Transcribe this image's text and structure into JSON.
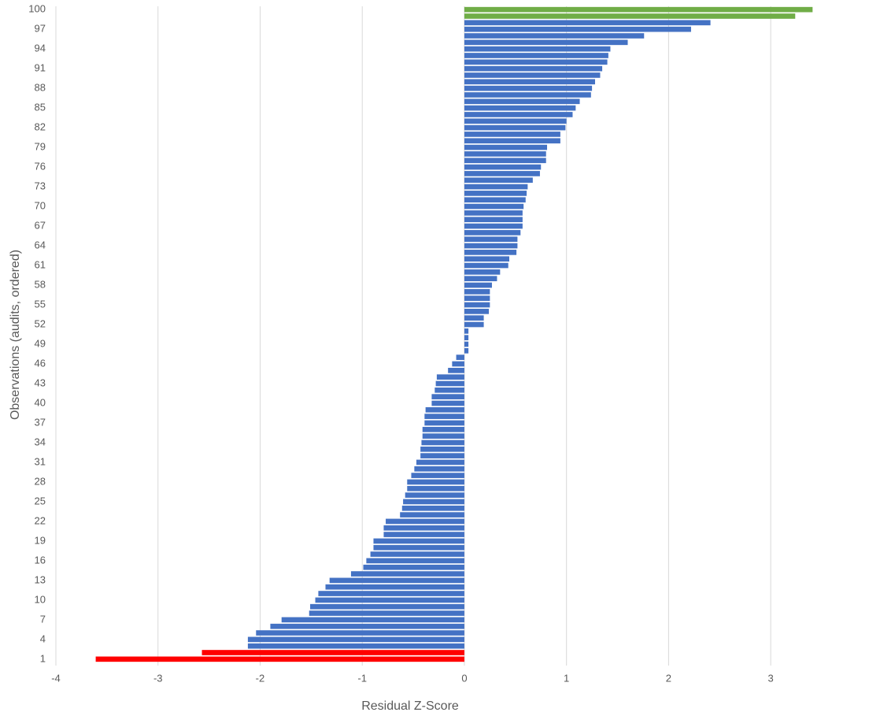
{
  "chart_data": {
    "type": "bar",
    "orientation": "horizontal",
    "x_label": "Residual Z-Score",
    "y_label": "Observations (audits, ordered)",
    "categories": [
      "1",
      null,
      null,
      "4",
      null,
      null,
      "7",
      null,
      null,
      "10",
      null,
      null,
      "13",
      null,
      null,
      "16",
      null,
      null,
      "19",
      null,
      null,
      "22",
      null,
      null,
      "25",
      null,
      null,
      "28",
      null,
      null,
      "31",
      null,
      null,
      "34",
      null,
      null,
      "37",
      null,
      null,
      "40",
      null,
      null,
      "43",
      null,
      null,
      "46",
      null,
      null,
      "49",
      null,
      null,
      "52",
      null,
      null,
      "55",
      null,
      null,
      "58",
      null,
      null,
      "61",
      null,
      null,
      "64",
      null,
      null,
      "67",
      null,
      null,
      "70",
      null,
      null,
      "73",
      null,
      null,
      "76",
      null,
      null,
      "79",
      null,
      null,
      "82",
      null,
      null,
      "85",
      null,
      null,
      "88",
      null,
      null,
      "91",
      null,
      null,
      "94",
      null,
      null,
      "97",
      null,
      null,
      "100"
    ],
    "values": [
      -3.61,
      -2.57,
      -2.12,
      -2.12,
      -2.04,
      -1.9,
      -1.79,
      -1.52,
      -1.51,
      -1.46,
      -1.43,
      -1.36,
      -1.32,
      -1.11,
      -0.99,
      -0.96,
      -0.92,
      -0.89,
      -0.89,
      -0.79,
      -0.79,
      -0.77,
      -0.63,
      -0.61,
      -0.6,
      -0.58,
      -0.56,
      -0.56,
      -0.52,
      -0.49,
      -0.47,
      -0.43,
      -0.43,
      -0.42,
      -0.41,
      -0.41,
      -0.39,
      -0.39,
      -0.38,
      -0.32,
      -0.32,
      -0.29,
      -0.28,
      -0.27,
      -0.16,
      -0.12,
      -0.08,
      0.04,
      0.04,
      0.04,
      0.04,
      0.19,
      0.19,
      0.24,
      0.25,
      0.25,
      0.25,
      0.27,
      0.32,
      0.35,
      0.43,
      0.44,
      0.51,
      0.52,
      0.52,
      0.55,
      0.57,
      0.57,
      0.57,
      0.58,
      0.6,
      0.61,
      0.62,
      0.67,
      0.74,
      0.75,
      0.8,
      0.8,
      0.81,
      0.94,
      0.94,
      0.99,
      1.0,
      1.06,
      1.09,
      1.13,
      1.24,
      1.25,
      1.28,
      1.33,
      1.35,
      1.4,
      1.41,
      1.43,
      1.6,
      1.76,
      2.22,
      2.41,
      3.24,
      3.41
    ],
    "colors": [
      "#ff0000",
      "#ff0000",
      "#4472c4",
      "#4472c4",
      "#4472c4",
      "#4472c4",
      "#4472c4",
      "#4472c4",
      "#4472c4",
      "#4472c4",
      "#4472c4",
      "#4472c4",
      "#4472c4",
      "#4472c4",
      "#4472c4",
      "#4472c4",
      "#4472c4",
      "#4472c4",
      "#4472c4",
      "#4472c4",
      "#4472c4",
      "#4472c4",
      "#4472c4",
      "#4472c4",
      "#4472c4",
      "#4472c4",
      "#4472c4",
      "#4472c4",
      "#4472c4",
      "#4472c4",
      "#4472c4",
      "#4472c4",
      "#4472c4",
      "#4472c4",
      "#4472c4",
      "#4472c4",
      "#4472c4",
      "#4472c4",
      "#4472c4",
      "#4472c4",
      "#4472c4",
      "#4472c4",
      "#4472c4",
      "#4472c4",
      "#4472c4",
      "#4472c4",
      "#4472c4",
      "#4472c4",
      "#4472c4",
      "#4472c4",
      "#4472c4",
      "#4472c4",
      "#4472c4",
      "#4472c4",
      "#4472c4",
      "#4472c4",
      "#4472c4",
      "#4472c4",
      "#4472c4",
      "#4472c4",
      "#4472c4",
      "#4472c4",
      "#4472c4",
      "#4472c4",
      "#4472c4",
      "#4472c4",
      "#4472c4",
      "#4472c4",
      "#4472c4",
      "#4472c4",
      "#4472c4",
      "#4472c4",
      "#4472c4",
      "#4472c4",
      "#4472c4",
      "#4472c4",
      "#4472c4",
      "#4472c4",
      "#4472c4",
      "#4472c4",
      "#4472c4",
      "#4472c4",
      "#4472c4",
      "#4472c4",
      "#4472c4",
      "#4472c4",
      "#4472c4",
      "#4472c4",
      "#4472c4",
      "#4472c4",
      "#4472c4",
      "#4472c4",
      "#4472c4",
      "#4472c4",
      "#4472c4",
      "#4472c4",
      "#4472c4",
      "#4472c4",
      "#70ad47",
      "#70ad47"
    ],
    "xlim": [
      -4,
      3.5
    ],
    "xticks": [
      -4,
      -3,
      -2,
      -1,
      0,
      1,
      2,
      3
    ],
    "grid": true
  }
}
